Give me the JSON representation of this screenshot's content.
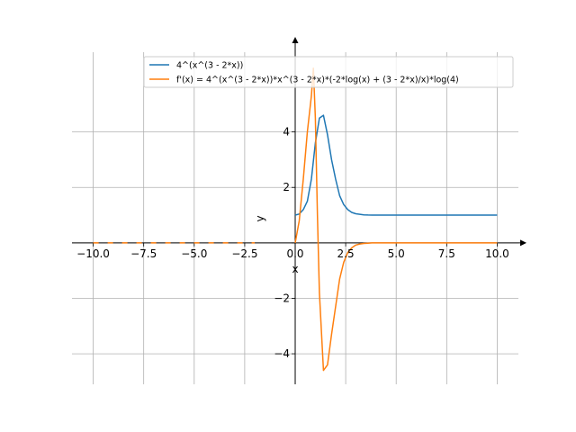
{
  "chart_data": {
    "type": "line",
    "title": "",
    "xlabel": "x",
    "ylabel": "y",
    "xlim": [
      -11.05,
      11.05
    ],
    "ylim": [
      -5.1,
      7.2
    ],
    "grid": true,
    "legend_placement": "top-right",
    "x_ticks": [
      -10,
      -7.5,
      -5,
      -2.5,
      0,
      2.5,
      5,
      7.5,
      10
    ],
    "x_tick_labels": [
      "−10.0",
      "−7.5",
      "−5.0",
      "−2.5",
      "0.0",
      "2.5",
      "5.0",
      "7.5",
      "10.0"
    ],
    "y_ticks": [
      -4,
      -2,
      0,
      2,
      4
    ],
    "y_tick_labels": [
      "−4",
      "−2",
      "0",
      "2",
      "4"
    ],
    "series": [
      {
        "name": "4^(x^(3 - 2*x))",
        "color": "#1f77b4",
        "x": [
          0,
          0.2,
          0.4,
          0.6,
          0.8,
          1.0,
          1.2,
          1.4,
          1.6,
          1.8,
          2.0,
          2.2,
          2.4,
          2.6,
          2.8,
          3.0,
          3.2,
          3.4,
          3.6,
          3.8,
          4.0,
          5.0,
          6.0,
          7.0,
          8.0,
          9.0,
          10.0
        ],
        "values": [
          1.0,
          1.04,
          1.2,
          1.5,
          2.3,
          3.6,
          4.5,
          4.6,
          3.9,
          3.0,
          2.3,
          1.7,
          1.38,
          1.2,
          1.1,
          1.05,
          1.03,
          1.01,
          1.005,
          1.0,
          1.0,
          1.0,
          1.0,
          1.0,
          1.0,
          1.0,
          1.0
        ]
      },
      {
        "name": "f'(x) = 4^(x^(3 - 2*x))*x^(3 - 2*x)*(-2*log(x) + (3 - 2*x)/x)*log(4)",
        "color": "#ff7f0e",
        "x": [
          0,
          0.2,
          0.4,
          0.6,
          0.8,
          0.9,
          1.0,
          1.1,
          1.2,
          1.4,
          1.6,
          1.8,
          2.0,
          2.2,
          2.4,
          2.6,
          2.8,
          3.0,
          3.2,
          3.4,
          3.6,
          3.8,
          4.0,
          5.0,
          6.0,
          7.0,
          8.0,
          9.0,
          10.0
        ],
        "values": [
          0,
          0.8,
          2.3,
          4.0,
          5.3,
          6.3,
          4.5,
          1.0,
          -1.8,
          -4.6,
          -4.4,
          -3.3,
          -2.3,
          -1.3,
          -0.7,
          -0.35,
          -0.18,
          -0.08,
          -0.04,
          -0.02,
          -0.01,
          0,
          0,
          0,
          0,
          0,
          0,
          0,
          0
        ]
      },
      {
        "name": "",
        "color": "#ff7f0e",
        "style": "dashed",
        "x": [
          -10,
          -8,
          -6,
          -4,
          -2
        ],
        "values": [
          0,
          0,
          0,
          0,
          0
        ]
      }
    ]
  }
}
